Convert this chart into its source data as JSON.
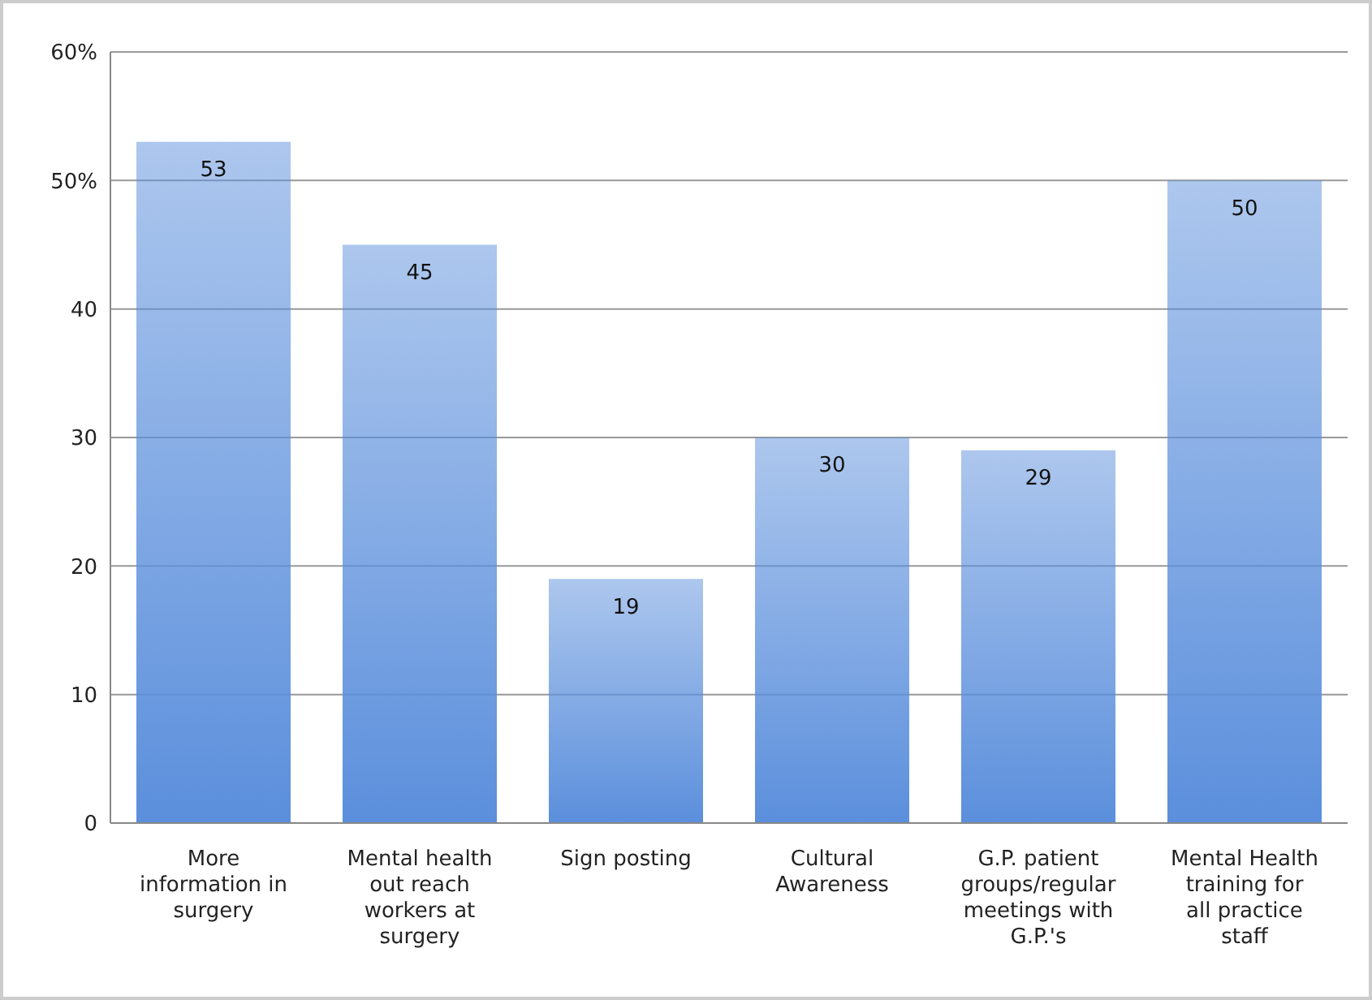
{
  "chart_data": {
    "type": "bar",
    "categories": [
      "More information in surgery",
      "Mental health out reach workers at surgery",
      "Sign posting",
      "Cultural Awareness",
      "G.P. patient groups/regular meetings with G.P.'s",
      "Mental Health training for all practice staff"
    ],
    "values": [
      53,
      45,
      19,
      30,
      29,
      50
    ],
    "color": "#5b8fdc",
    "ylim": [
      0,
      60
    ],
    "yticks": [
      0,
      10,
      20,
      30,
      40,
      {
        "value": 50,
        "label": "50%"
      },
      {
        "value": 60,
        "label": "60%"
      }
    ],
    "grid": "y",
    "data_labels": true
  }
}
